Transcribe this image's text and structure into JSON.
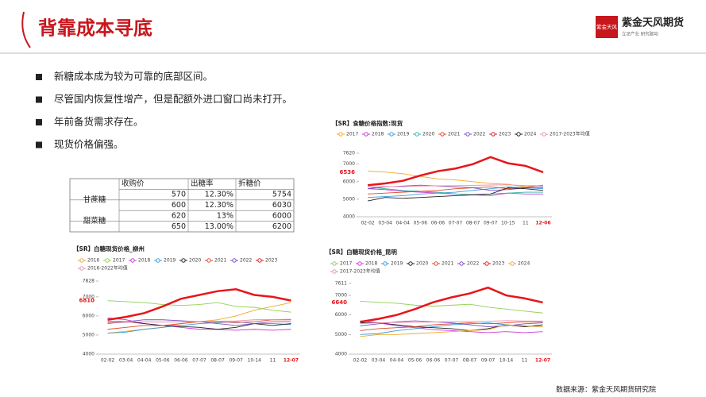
{
  "header": {
    "title": "背靠成本寻底",
    "logo_mark": "紫金天风",
    "logo_name": "紫金天风期货",
    "logo_slogan": "立足产业  研究驱动"
  },
  "bullets": [
    "新糖成本成为较为可靠的底部区间。",
    "尽管国内恢复性增产，但是配额外进口窗口尚未打开。",
    "年前备货需求存在。",
    "现货价格偏强。"
  ],
  "table": {
    "header": [
      "收购价",
      "出糖率",
      "折糖价"
    ],
    "rows": [
      {
        "group": "甘蔗糖",
        "cells": [
          "570",
          "12.30%",
          "5754"
        ]
      },
      {
        "cells": [
          "600",
          "12.30%",
          "6030"
        ]
      },
      {
        "group": "甜菜糖",
        "cells": [
          "620",
          "13%",
          "6000"
        ]
      },
      {
        "cells": [
          "650",
          "13.00%",
          "6200"
        ]
      }
    ]
  },
  "source": "数据来源：紫金天风期货研究院",
  "chart_data": [
    {
      "type": "line",
      "title": "【SR】食糖价格指数:现货",
      "categories": [
        "02-02",
        "03-04",
        "04-04",
        "05-06",
        "06-06",
        "07-07",
        "08-07",
        "09-07",
        "10-15",
        "11",
        "12-06"
      ],
      "ylim": [
        4000,
        7620
      ],
      "yticks": [
        4000,
        5000,
        6000,
        7000,
        7620
      ],
      "marker_value": 6536,
      "series": [
        {
          "name": "2017",
          "color": "#f5a623",
          "values": [
            6600,
            6550,
            6450,
            6300,
            6150,
            6100,
            6000,
            5900,
            5850,
            5700,
            5650
          ]
        },
        {
          "name": "2018",
          "color": "#c83ad6",
          "values": [
            5600,
            5550,
            5450,
            5400,
            5350,
            5300,
            5250,
            5200,
            5350,
            5300,
            5300
          ]
        },
        {
          "name": "2019",
          "color": "#3a9ad9",
          "values": [
            5100,
            5150,
            5200,
            5300,
            5350,
            5400,
            5500,
            5600,
            5700,
            5650,
            5600
          ]
        },
        {
          "name": "2020",
          "color": "#2fb3a8",
          "values": [
            5700,
            5600,
            5500,
            5450,
            5400,
            5300,
            5250,
            5300,
            5350,
            5400,
            5400
          ]
        },
        {
          "name": "2021",
          "color": "#e0472c",
          "values": [
            5300,
            5350,
            5400,
            5450,
            5500,
            5600,
            5650,
            5700,
            5600,
            5700,
            5800
          ]
        },
        {
          "name": "2022",
          "color": "#7a4fc0",
          "values": [
            5600,
            5700,
            5750,
            5800,
            5750,
            5700,
            5650,
            5500,
            5550,
            5650,
            5700
          ]
        },
        {
          "name": "2023",
          "color": "#e8141b",
          "line_width": 2.5,
          "values": [
            5800,
            5900,
            6050,
            6350,
            6600,
            6750,
            7000,
            7400,
            7050,
            6900,
            6536
          ]
        },
        {
          "name": "2024",
          "color": "#222222",
          "values": [
            4900,
            5100,
            5050,
            5100,
            5150,
            5200,
            5250,
            5300,
            5650,
            5600,
            5500
          ]
        },
        {
          "name": "2017-2023年均值",
          "color": "#f08cb0",
          "values": [
            5700,
            5720,
            5720,
            5750,
            5760,
            5770,
            5790,
            5810,
            5820,
            5780,
            5770
          ]
        }
      ]
    },
    {
      "type": "line",
      "title": "【SR】白糖现货价格_柳州",
      "categories": [
        "02-02",
        "03-04",
        "04-04",
        "05-06",
        "06-06",
        "07-07",
        "08-07",
        "09-07",
        "10-14",
        "11",
        "12-07"
      ],
      "ylim": [
        4000,
        7828
      ],
      "yticks": [
        4000,
        5000,
        6000,
        7000,
        7828
      ],
      "marker_value": 6810,
      "series": [
        {
          "name": "2016",
          "color": "#f5a623",
          "values": [
            5100,
            5200,
            5300,
            5400,
            5600,
            5700,
            5800,
            6000,
            6300,
            6500,
            6700
          ]
        },
        {
          "name": "2017",
          "color": "#8fd14f",
          "values": [
            6800,
            6750,
            6700,
            6600,
            6550,
            6600,
            6700,
            6500,
            6450,
            6300,
            6200
          ]
        },
        {
          "name": "2018",
          "color": "#c83ad6",
          "values": [
            5900,
            5800,
            5600,
            5500,
            5400,
            5300,
            5300,
            5250,
            5300,
            5250,
            5300
          ]
        },
        {
          "name": "2019",
          "color": "#3a9ad9",
          "values": [
            5100,
            5150,
            5300,
            5400,
            5500,
            5600,
            5650,
            5700,
            5600,
            5600,
            5550
          ]
        },
        {
          "name": "2020",
          "color": "#222222",
          "values": [
            5700,
            5700,
            5600,
            5500,
            5450,
            5400,
            5300,
            5400,
            5600,
            5500,
            5600
          ]
        },
        {
          "name": "2021",
          "color": "#e0472c",
          "values": [
            5300,
            5400,
            5500,
            5500,
            5600,
            5700,
            5700,
            5650,
            5700,
            5800,
            5800
          ]
        },
        {
          "name": "2022",
          "color": "#7a4fc0",
          "values": [
            5600,
            5700,
            5800,
            5800,
            5750,
            5700,
            5600,
            5500,
            5600,
            5700,
            5700
          ]
        },
        {
          "name": "2023",
          "color": "#e8141b",
          "line_width": 2.5,
          "values": [
            5800,
            5950,
            6150,
            6500,
            6900,
            7100,
            7300,
            7400,
            7100,
            7000,
            6810
          ]
        },
        {
          "name": "2016-2022年均值",
          "color": "#f08cb0",
          "values": [
            5630,
            5670,
            5690,
            5680,
            5690,
            5710,
            5730,
            5740,
            5800,
            5810,
            5830
          ]
        }
      ]
    },
    {
      "type": "line",
      "title": "【SR】白糖现货价格_昆明",
      "categories": [
        "02-02",
        "03-04",
        "04-04",
        "05-06",
        "06-06",
        "07-07",
        "08-07",
        "09-07",
        "10-14",
        "11",
        "12-07"
      ],
      "ylim": [
        4000,
        7611
      ],
      "yticks": [
        4000,
        5000,
        6000,
        7000,
        7611
      ],
      "marker_value": 6640,
      "series": [
        {
          "name": "2017",
          "color": "#8fd14f",
          "values": [
            6700,
            6650,
            6600,
            6500,
            6450,
            6500,
            6550,
            6400,
            6300,
            6200,
            6100
          ]
        },
        {
          "name": "2018",
          "color": "#c83ad6",
          "values": [
            5700,
            5600,
            5450,
            5350,
            5250,
            5200,
            5150,
            5100,
            5150,
            5100,
            5150
          ]
        },
        {
          "name": "2019",
          "color": "#3a9ad9",
          "values": [
            5000,
            5050,
            5200,
            5300,
            5400,
            5500,
            5550,
            5600,
            5500,
            5450,
            5400
          ]
        },
        {
          "name": "2020",
          "color": "#222222",
          "values": [
            5600,
            5600,
            5500,
            5400,
            5350,
            5300,
            5200,
            5300,
            5500,
            5400,
            5500
          ]
        },
        {
          "name": "2021",
          "color": "#e0472c",
          "values": [
            5200,
            5300,
            5350,
            5400,
            5500,
            5550,
            5600,
            5550,
            5600,
            5650,
            5650
          ]
        },
        {
          "name": "2022",
          "color": "#7a4fc0",
          "values": [
            5450,
            5550,
            5650,
            5700,
            5650,
            5600,
            5500,
            5400,
            5450,
            5550,
            5600
          ]
        },
        {
          "name": "2023",
          "color": "#e8141b",
          "line_width": 2.5,
          "values": [
            5650,
            5800,
            6000,
            6300,
            6650,
            6900,
            7100,
            7400,
            7000,
            6850,
            6640
          ]
        },
        {
          "name": "2024",
          "color": "#f5a623",
          "values": [
            4900,
            5000,
            5000,
            5050,
            5100,
            5150,
            5200,
            5250,
            5500,
            5450,
            5400
          ]
        },
        {
          "name": "2017-2023年均值",
          "color": "#f08cb0",
          "values": [
            5560,
            5600,
            5620,
            5620,
            5640,
            5660,
            5670,
            5680,
            5710,
            5690,
            5690
          ]
        }
      ]
    }
  ]
}
